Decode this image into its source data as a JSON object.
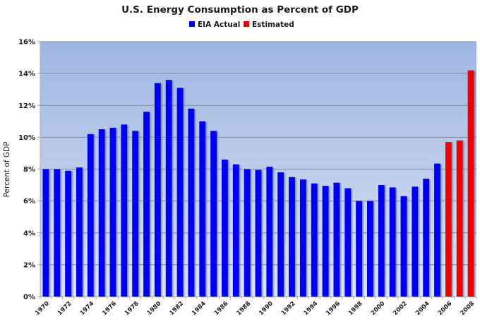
{
  "chart_data": {
    "type": "bar",
    "title": "U.S. Energy Consumption as Percent of GDP",
    "xlabel": "",
    "ylabel": "Percent of GDP",
    "ylim": [
      0,
      16
    ],
    "yticks": [
      "0%",
      "2%",
      "4%",
      "6%",
      "8%",
      "10%",
      "12%",
      "14%",
      "16%"
    ],
    "ytick_values": [
      0,
      2,
      4,
      6,
      8,
      10,
      12,
      14,
      16
    ],
    "grid": true,
    "legend_position": "top-center",
    "legend": [
      {
        "name": "EIA Actual",
        "color": "#0000ee"
      },
      {
        "name": "Estimated",
        "color": "#ee0000"
      }
    ],
    "categories": [
      "1970",
      "1971",
      "1972",
      "1973",
      "1974",
      "1975",
      "1976",
      "1977",
      "1978",
      "1979",
      "1980",
      "1981",
      "1982",
      "1983",
      "1984",
      "1985",
      "1986",
      "1987",
      "1988",
      "1989",
      "1990",
      "1991",
      "1992",
      "1993",
      "1994",
      "1995",
      "1996",
      "1997",
      "1998",
      "1999",
      "2000",
      "2001",
      "2002",
      "2003",
      "2004",
      "2005",
      "2006",
      "2007",
      "2008"
    ],
    "xtick_labels": [
      "1970",
      "1972",
      "1974",
      "1976",
      "1978",
      "1980",
      "1982",
      "1984",
      "1986",
      "1988",
      "1990",
      "1992",
      "1994",
      "1996",
      "1998",
      "2000",
      "2002",
      "2004",
      "2006",
      "2008"
    ],
    "series": [
      {
        "name": "EIA Actual",
        "color": "#0000ee",
        "values": [
          8.0,
          8.0,
          7.9,
          8.1,
          10.2,
          10.5,
          10.6,
          10.8,
          10.4,
          11.6,
          13.4,
          13.6,
          13.1,
          11.8,
          11.0,
          10.4,
          8.6,
          8.3,
          8.0,
          7.95,
          8.15,
          7.8,
          7.5,
          7.35,
          7.1,
          6.95,
          7.15,
          6.8,
          6.0,
          6.0,
          7.0,
          6.85,
          6.3,
          6.9,
          7.4,
          8.35,
          null,
          null,
          null
        ]
      },
      {
        "name": "Estimated",
        "color": "#ee0000",
        "values": [
          null,
          null,
          null,
          null,
          null,
          null,
          null,
          null,
          null,
          null,
          null,
          null,
          null,
          null,
          null,
          null,
          null,
          null,
          null,
          null,
          null,
          null,
          null,
          null,
          null,
          null,
          null,
          null,
          null,
          null,
          null,
          null,
          null,
          null,
          null,
          null,
          9.7,
          9.8,
          14.2
        ]
      }
    ]
  }
}
